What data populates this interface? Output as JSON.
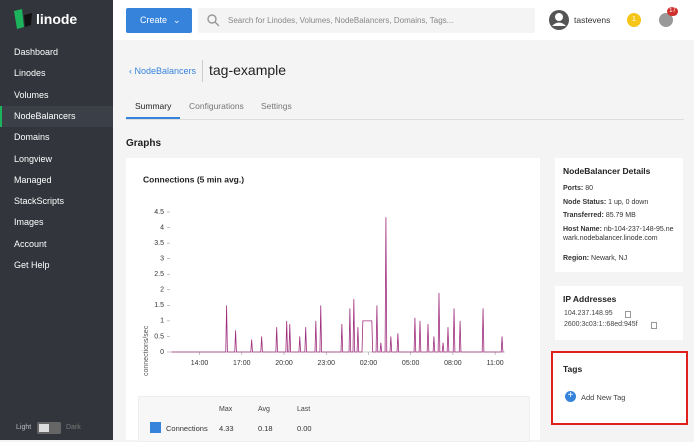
{
  "sidebar": {
    "brand": "linode",
    "nav": [
      "Dashboard",
      "Linodes",
      "Volumes",
      "NodeBalancers",
      "Domains",
      "Longview",
      "Managed",
      "StackScripts",
      "Images",
      "Account",
      "Get Help"
    ],
    "active": 3,
    "theme_light": "Light",
    "theme_dark": "Dark"
  },
  "topbar": {
    "create": "Create",
    "search_placeholder": "Search for Linodes, Volumes, NodeBalancers, Domains, Tags...",
    "username": "tastevens",
    "notice_count": "1",
    "alert_count": "17"
  },
  "header": {
    "breadcrumb": "NodeBalancers",
    "title": "tag-example",
    "tabs": [
      "Summary",
      "Configurations",
      "Settings"
    ],
    "active_tab": 0
  },
  "graphs_heading": "Graphs",
  "chart_data": {
    "type": "line",
    "title": "Connections (5 min avg.)",
    "y_label": "connections/sec",
    "xlim": [
      11.9,
      35.7
    ],
    "xticks": [
      {
        "value": 14,
        "label": "14:00"
      },
      {
        "value": 17,
        "label": "17:00"
      },
      {
        "value": 20,
        "label": "20:00"
      },
      {
        "value": 23,
        "label": "23:00"
      },
      {
        "value": 26,
        "label": "02:00"
      },
      {
        "value": 29,
        "label": "05:00"
      },
      {
        "value": 32,
        "label": "08:00"
      },
      {
        "value": 35,
        "label": "11:00"
      }
    ],
    "ylim": [
      0,
      4.5
    ],
    "yticks": [
      0,
      0.5,
      1,
      1.5,
      2,
      2.5,
      3,
      3.5,
      4,
      4.5
    ],
    "series": [
      {
        "name": "Connections",
        "color": "#a0307e",
        "x": [
          12.0,
          15.86,
          15.92,
          15.98,
          16.5,
          16.56,
          16.62,
          17.64,
          17.7,
          17.76,
          18.35,
          18.41,
          18.47,
          19.42,
          19.48,
          19.54,
          20.13,
          20.19,
          20.25,
          20.35,
          20.41,
          20.47,
          21.06,
          21.12,
          21.18,
          21.48,
          21.54,
          21.6,
          22.2,
          22.26,
          22.32,
          22.55,
          22.61,
          22.67,
          24.05,
          24.11,
          24.17,
          24.62,
          24.68,
          24.74,
          24.9,
          24.96,
          25.02,
          25.19,
          25.25,
          25.31,
          25.54,
          25.6,
          26.24,
          26.3,
          26.54,
          26.6,
          26.66,
          26.82,
          26.88,
          26.94,
          27.18,
          27.24,
          27.3,
          27.53,
          27.59,
          27.65,
          28.03,
          28.09,
          28.15,
          29.24,
          29.3,
          29.36,
          29.6,
          29.66,
          29.72,
          30.17,
          30.23,
          30.29,
          30.59,
          30.65,
          30.71,
          30.95,
          31.01,
          31.07,
          31.24,
          31.3,
          31.36,
          31.59,
          31.65,
          31.71,
          32.02,
          32.08,
          32.14,
          32.45,
          32.51,
          32.57,
          34.08,
          34.14,
          34.2,
          35.43,
          35.49,
          35.55,
          35.6
        ],
        "values": [
          0,
          0,
          1.5,
          0,
          0,
          0.7,
          0,
          0,
          0.4,
          0,
          0,
          0.5,
          0,
          0,
          0.8,
          0,
          0,
          1.0,
          0,
          0,
          0.9,
          0,
          0,
          0.5,
          0,
          0,
          0.8,
          0,
          0,
          1.0,
          0,
          0,
          1.5,
          0,
          0,
          0.9,
          0,
          0,
          1.4,
          0,
          0,
          1.7,
          0,
          0,
          0.8,
          0,
          0,
          1.0,
          1.0,
          0,
          0,
          1.5,
          0,
          0,
          0.3,
          0,
          0,
          4.33,
          0,
          0,
          0.5,
          0,
          0,
          0.6,
          0,
          0,
          1.1,
          0,
          0,
          1.0,
          0,
          0,
          0.9,
          0,
          0,
          0.5,
          0,
          0,
          1.9,
          0,
          0,
          0.3,
          0,
          0,
          0.8,
          0,
          0,
          1.4,
          0,
          0,
          1.0,
          0,
          0,
          1.4,
          0,
          0,
          0.5,
          0,
          0
        ]
      }
    ]
  },
  "graph_stats": {
    "headers": [
      "Max",
      "Avg",
      "Last"
    ],
    "row": [
      "4.33",
      "0.18",
      "0.00"
    ]
  },
  "details": {
    "title": "NodeBalancer Details",
    "rows": [
      [
        "Ports:",
        "80"
      ],
      [
        "Node Status:",
        "1 up, 0 down"
      ],
      [
        "Transferred:",
        "85.79 MB"
      ],
      [
        "Host Name:",
        "nb-104-237-148-95.newark.nodebalancer.linode.com"
      ],
      [
        "Region:",
        "Newark, NJ"
      ]
    ]
  },
  "ip": {
    "title": "IP Addresses",
    "addresses": [
      "104.237.148.95",
      "2600:3c03:1::68ed:945f"
    ]
  },
  "tags": {
    "title": "Tags",
    "add": "Add New Tag"
  }
}
